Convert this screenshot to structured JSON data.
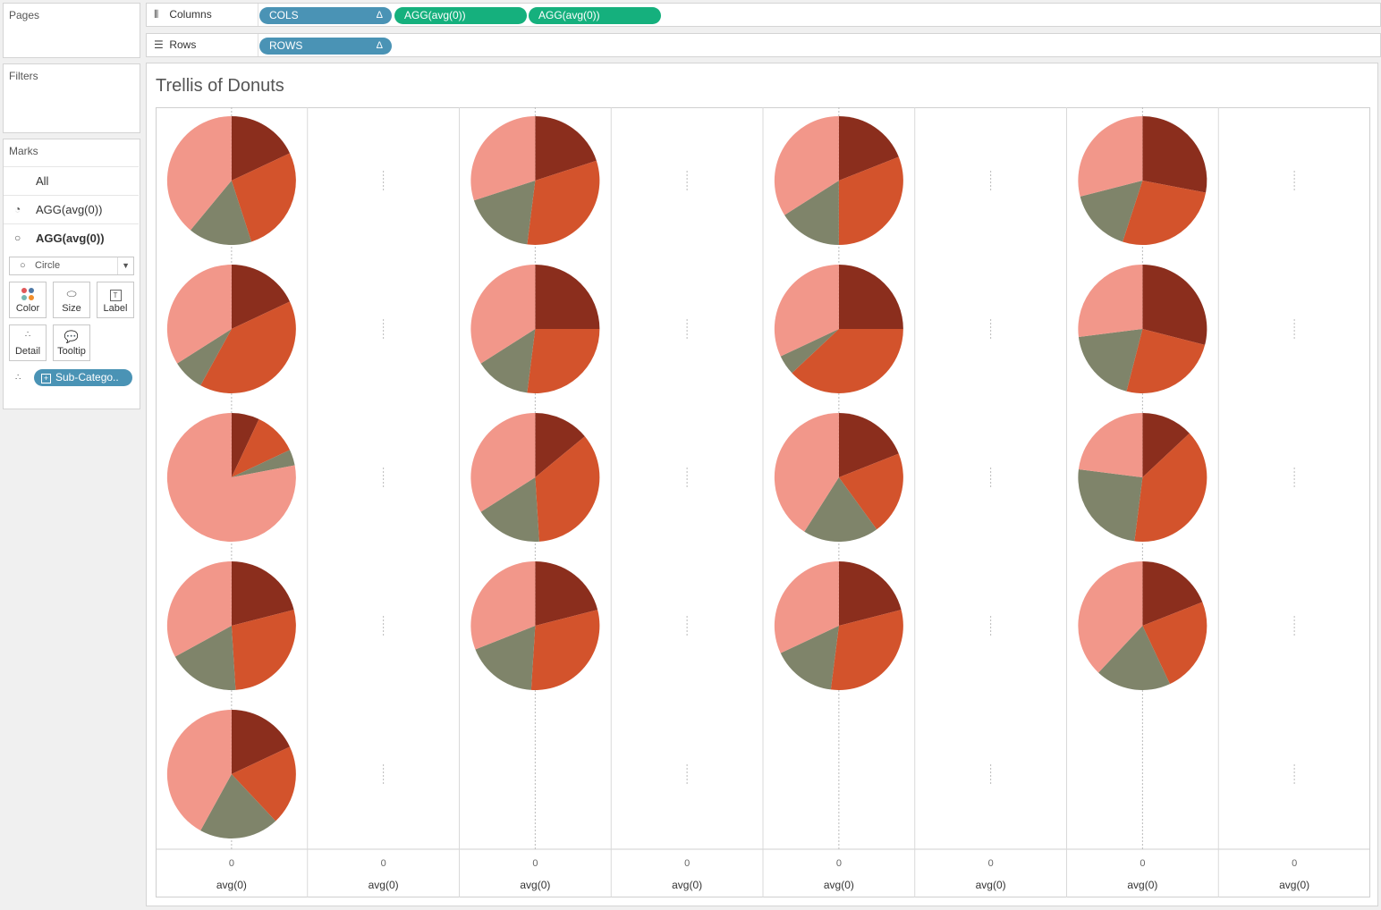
{
  "sidebar": {
    "pages_label": "Pages",
    "filters_label": "Filters",
    "marks": {
      "title": "Marks",
      "all_label": "All",
      "items": [
        {
          "label": "AGG(avg(0))",
          "icon": "pie-icon",
          "bold": false
        },
        {
          "label": "AGG(avg(0))",
          "icon": "circle-icon",
          "bold": true
        }
      ],
      "mark_type": "Circle",
      "buttons": {
        "color": "Color",
        "size": "Size",
        "label": "Label",
        "detail": "Detail",
        "tooltip": "Tooltip"
      },
      "detail_pill": "Sub-Catego.."
    }
  },
  "shelves": {
    "columns_label": "Columns",
    "rows_label": "Rows",
    "columns_pills": [
      {
        "label": "COLS",
        "delta": "Δ",
        "color": "#4a93b5"
      },
      {
        "label": "AGG(avg(0))",
        "color": "#15b07d"
      },
      {
        "label": "AGG(avg(0))",
        "color": "#15b07d"
      }
    ],
    "rows_pills": [
      {
        "label": "ROWS",
        "delta": "Δ",
        "color": "#4a93b5"
      }
    ]
  },
  "view": {
    "title": "Trellis of Donuts",
    "axis_zero": "0",
    "axis_label": "avg(0)",
    "colors": [
      "#8b2e1d",
      "#d3532c",
      "#7f846a",
      "#f2978a"
    ]
  },
  "chart_data": {
    "type": "pie",
    "layout": "trellis",
    "columns": 8,
    "pie_columns": [
      0,
      2,
      4,
      6
    ],
    "series_order": [
      "segment-1",
      "segment-2",
      "segment-3",
      "segment-4"
    ],
    "pies": [
      {
        "col": 0,
        "row": 0,
        "values": [
          0.18,
          0.27,
          0.16,
          0.39
        ]
      },
      {
        "col": 0,
        "row": 1,
        "values": [
          0.18,
          0.4,
          0.08,
          0.34
        ]
      },
      {
        "col": 0,
        "row": 2,
        "values": [
          0.07,
          0.11,
          0.04,
          0.78
        ]
      },
      {
        "col": 0,
        "row": 3,
        "values": [
          0.21,
          0.28,
          0.18,
          0.33
        ]
      },
      {
        "col": 0,
        "row": 4,
        "values": [
          0.18,
          0.2,
          0.2,
          0.42
        ]
      },
      {
        "col": 2,
        "row": 0,
        "values": [
          0.2,
          0.32,
          0.18,
          0.3
        ]
      },
      {
        "col": 2,
        "row": 1,
        "values": [
          0.25,
          0.27,
          0.14,
          0.34
        ]
      },
      {
        "col": 2,
        "row": 2,
        "values": [
          0.14,
          0.35,
          0.17,
          0.34
        ]
      },
      {
        "col": 2,
        "row": 3,
        "values": [
          0.21,
          0.3,
          0.18,
          0.31
        ]
      },
      {
        "col": 4,
        "row": 0,
        "values": [
          0.19,
          0.31,
          0.16,
          0.34
        ]
      },
      {
        "col": 4,
        "row": 1,
        "values": [
          0.25,
          0.38,
          0.05,
          0.32
        ]
      },
      {
        "col": 4,
        "row": 2,
        "values": [
          0.19,
          0.21,
          0.19,
          0.41
        ]
      },
      {
        "col": 4,
        "row": 3,
        "values": [
          0.21,
          0.31,
          0.16,
          0.32
        ]
      },
      {
        "col": 6,
        "row": 0,
        "values": [
          0.28,
          0.27,
          0.16,
          0.29
        ]
      },
      {
        "col": 6,
        "row": 1,
        "values": [
          0.29,
          0.25,
          0.19,
          0.27
        ]
      },
      {
        "col": 6,
        "row": 2,
        "values": [
          0.13,
          0.39,
          0.25,
          0.23
        ]
      },
      {
        "col": 6,
        "row": 3,
        "values": [
          0.19,
          0.24,
          0.19,
          0.38
        ]
      }
    ]
  }
}
